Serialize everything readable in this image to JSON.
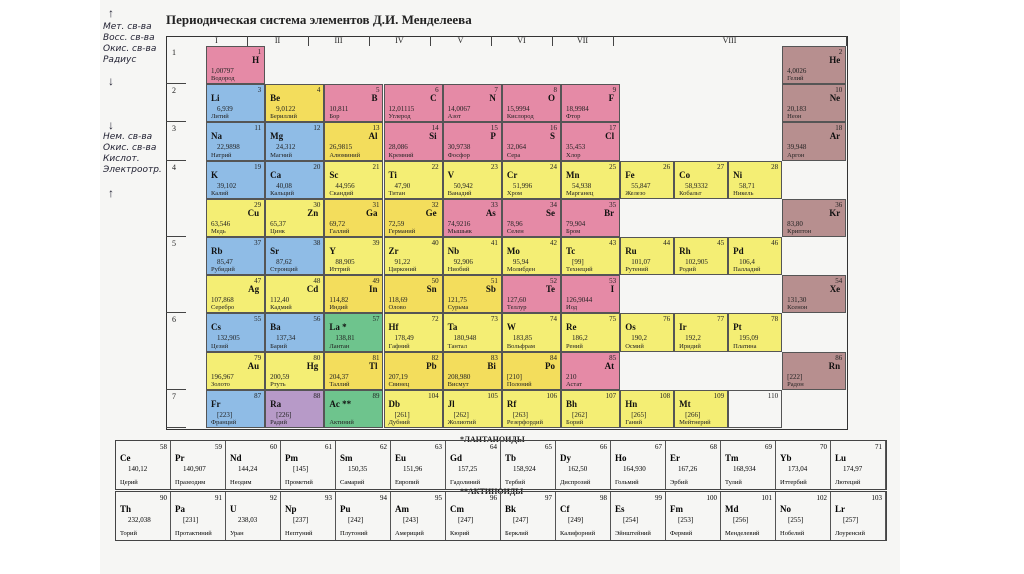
{
  "title": "Периодическая система элементов Д.И. Менделеева",
  "notes_top": [
    "Мет. св-ва",
    "Восс. св-ва",
    "Окис. св-ва",
    "Радиус"
  ],
  "notes_mid": [
    "Нем. св-ва",
    "Окис. св-ва",
    "Кислот.",
    "Электроотр."
  ],
  "groups": [
    "I",
    "II",
    "III",
    "IV",
    "V",
    "VI",
    "VII",
    "VIII"
  ],
  "periods": [
    "1",
    "2",
    "3",
    "4",
    "5",
    "6",
    "7"
  ],
  "colors": {
    "s": "#8fbce6",
    "p": "#f3dd5c",
    "d": "#f4ee74",
    "h": "#e58aa6",
    "noble": "#b78f8f",
    "lan": "#6ec48d",
    "purple": "#b79ac8"
  },
  "elements": [
    {
      "sym": "H",
      "num": "1",
      "mass": "1,00797",
      "name": "Водород",
      "side": "right",
      "col": 0,
      "row": 0,
      "c": "h"
    },
    {
      "sym": "He",
      "num": "2",
      "mass": "4,0026",
      "name": "Гелий",
      "side": "right",
      "col": 8,
      "row": 0,
      "c": "noble"
    },
    {
      "sym": "Li",
      "num": "3",
      "mass": "6,939",
      "name": "Литий",
      "side": "left",
      "col": 0,
      "row": 1,
      "c": "s"
    },
    {
      "sym": "Be",
      "num": "4",
      "mass": "9,0122",
      "name": "Бериллий",
      "side": "left",
      "col": 1,
      "row": 1,
      "c": "p"
    },
    {
      "sym": "B",
      "num": "5",
      "mass": "10,811",
      "name": "Бор",
      "side": "right",
      "col": 2,
      "row": 1,
      "c": "h"
    },
    {
      "sym": "C",
      "num": "6",
      "mass": "12,01115",
      "name": "Углерод",
      "side": "right",
      "col": 3,
      "row": 1,
      "c": "h"
    },
    {
      "sym": "N",
      "num": "7",
      "mass": "14,0067",
      "name": "Азот",
      "side": "right",
      "col": 4,
      "row": 1,
      "c": "h"
    },
    {
      "sym": "O",
      "num": "8",
      "mass": "15,9994",
      "name": "Кислород",
      "side": "right",
      "col": 5,
      "row": 1,
      "c": "h"
    },
    {
      "sym": "F",
      "num": "9",
      "mass": "18,9984",
      "name": "Фтор",
      "side": "right",
      "col": 6,
      "row": 1,
      "c": "h"
    },
    {
      "sym": "Ne",
      "num": "10",
      "mass": "20,183",
      "name": "Неон",
      "side": "right",
      "col": 8,
      "row": 1,
      "c": "noble"
    },
    {
      "sym": "Na",
      "num": "11",
      "mass": "22,9898",
      "name": "Натрий",
      "side": "left",
      "col": 0,
      "row": 2,
      "c": "s"
    },
    {
      "sym": "Mg",
      "num": "12",
      "mass": "24,312",
      "name": "Магний",
      "side": "left",
      "col": 1,
      "row": 2,
      "c": "s"
    },
    {
      "sym": "Al",
      "num": "13",
      "mass": "26,9815",
      "name": "Алюминий",
      "side": "right",
      "col": 2,
      "row": 2,
      "c": "p"
    },
    {
      "sym": "Si",
      "num": "14",
      "mass": "28,086",
      "name": "Кремний",
      "side": "right",
      "col": 3,
      "row": 2,
      "c": "h"
    },
    {
      "sym": "P",
      "num": "15",
      "mass": "30,9738",
      "name": "Фосфор",
      "side": "right",
      "col": 4,
      "row": 2,
      "c": "h"
    },
    {
      "sym": "S",
      "num": "16",
      "mass": "32,064",
      "name": "Сера",
      "side": "right",
      "col": 5,
      "row": 2,
      "c": "h"
    },
    {
      "sym": "Cl",
      "num": "17",
      "mass": "35,453",
      "name": "Хлор",
      "side": "right",
      "col": 6,
      "row": 2,
      "c": "h"
    },
    {
      "sym": "Ar",
      "num": "18",
      "mass": "39,948",
      "name": "Аргон",
      "side": "right",
      "col": 8,
      "row": 2,
      "c": "noble"
    },
    {
      "sym": "K",
      "num": "19",
      "mass": "39,102",
      "name": "Калий",
      "side": "left",
      "col": 0,
      "row": 3,
      "c": "s"
    },
    {
      "sym": "Ca",
      "num": "20",
      "mass": "40,08",
      "name": "Кальций",
      "side": "left",
      "col": 1,
      "row": 3,
      "c": "s"
    },
    {
      "sym": "Sc",
      "num": "21",
      "mass": "44,956",
      "name": "Скандий",
      "side": "left",
      "col": 2,
      "row": 3,
      "c": "d"
    },
    {
      "sym": "Ti",
      "num": "22",
      "mass": "47,90",
      "name": "Титан",
      "side": "left",
      "col": 3,
      "row": 3,
      "c": "d"
    },
    {
      "sym": "V",
      "num": "23",
      "mass": "50,942",
      "name": "Ванадий",
      "side": "left",
      "col": 4,
      "row": 3,
      "c": "d"
    },
    {
      "sym": "Cr",
      "num": "24",
      "mass": "51,996",
      "name": "Хром",
      "side": "left",
      "col": 5,
      "row": 3,
      "c": "d"
    },
    {
      "sym": "Mn",
      "num": "25",
      "mass": "54,938",
      "name": "Марганец",
      "side": "left",
      "col": 6,
      "row": 3,
      "c": "d"
    },
    {
      "sym": "Fe",
      "num": "26",
      "mass": "55,847",
      "name": "Железо",
      "side": "left",
      "col": 7,
      "row": 3,
      "c": "d",
      "sub": 0
    },
    {
      "sym": "Co",
      "num": "27",
      "mass": "58,9332",
      "name": "Кобальт",
      "side": "left",
      "col": 7,
      "row": 3,
      "c": "d",
      "sub": 1
    },
    {
      "sym": "Ni",
      "num": "28",
      "mass": "58,71",
      "name": "Никель",
      "side": "left",
      "col": 7,
      "row": 3,
      "c": "d",
      "sub": 2
    },
    {
      "sym": "Cu",
      "num": "29",
      "mass": "63,546",
      "name": "Медь",
      "side": "right",
      "col": 0,
      "row": 4,
      "c": "d"
    },
    {
      "sym": "Zn",
      "num": "30",
      "mass": "65,37",
      "name": "Цинк",
      "side": "right",
      "col": 1,
      "row": 4,
      "c": "d"
    },
    {
      "sym": "Ga",
      "num": "31",
      "mass": "69,72",
      "name": "Галлий",
      "side": "right",
      "col": 2,
      "row": 4,
      "c": "p"
    },
    {
      "sym": "Ge",
      "num": "32",
      "mass": "72,59",
      "name": "Германий",
      "side": "right",
      "col": 3,
      "row": 4,
      "c": "p"
    },
    {
      "sym": "As",
      "num": "33",
      "mass": "74,9216",
      "name": "Мышьяк",
      "side": "right",
      "col": 4,
      "row": 4,
      "c": "h"
    },
    {
      "sym": "Se",
      "num": "34",
      "mass": "78,96",
      "name": "Селен",
      "side": "right",
      "col": 5,
      "row": 4,
      "c": "h"
    },
    {
      "sym": "Br",
      "num": "35",
      "mass": "79,904",
      "name": "Бром",
      "side": "right",
      "col": 6,
      "row": 4,
      "c": "h"
    },
    {
      "sym": "Kr",
      "num": "36",
      "mass": "83,80",
      "name": "Криптон",
      "side": "right",
      "col": 8,
      "row": 4,
      "c": "noble"
    },
    {
      "sym": "Rb",
      "num": "37",
      "mass": "85,47",
      "name": "Рубидий",
      "side": "left",
      "col": 0,
      "row": 5,
      "c": "s"
    },
    {
      "sym": "Sr",
      "num": "38",
      "mass": "87,62",
      "name": "Стронций",
      "side": "left",
      "col": 1,
      "row": 5,
      "c": "s"
    },
    {
      "sym": "Y",
      "num": "39",
      "mass": "88,905",
      "name": "Иттрий",
      "side": "left",
      "col": 2,
      "row": 5,
      "c": "d"
    },
    {
      "sym": "Zr",
      "num": "40",
      "mass": "91,22",
      "name": "Цирконий",
      "side": "left",
      "col": 3,
      "row": 5,
      "c": "d"
    },
    {
      "sym": "Nb",
      "num": "41",
      "mass": "92,906",
      "name": "Ниобий",
      "side": "left",
      "col": 4,
      "row": 5,
      "c": "d"
    },
    {
      "sym": "Mo",
      "num": "42",
      "mass": "95,94",
      "name": "Молибден",
      "side": "left",
      "col": 5,
      "row": 5,
      "c": "d"
    },
    {
      "sym": "Tc",
      "num": "43",
      "mass": "[99]",
      "name": "Технеций",
      "side": "left",
      "col": 6,
      "row": 5,
      "c": "d"
    },
    {
      "sym": "Ru",
      "num": "44",
      "mass": "101,07",
      "name": "Рутений",
      "side": "left",
      "col": 7,
      "row": 5,
      "c": "d",
      "sub": 0
    },
    {
      "sym": "Rh",
      "num": "45",
      "mass": "102,905",
      "name": "Родий",
      "side": "left",
      "col": 7,
      "row": 5,
      "c": "d",
      "sub": 1
    },
    {
      "sym": "Pd",
      "num": "46",
      "mass": "106,4",
      "name": "Палладий",
      "side": "left",
      "col": 7,
      "row": 5,
      "c": "d",
      "sub": 2
    },
    {
      "sym": "Ag",
      "num": "47",
      "mass": "107,868",
      "name": "Серебро",
      "side": "right",
      "col": 0,
      "row": 6,
      "c": "d"
    },
    {
      "sym": "Cd",
      "num": "48",
      "mass": "112,40",
      "name": "Кадмий",
      "side": "right",
      "col": 1,
      "row": 6,
      "c": "d"
    },
    {
      "sym": "In",
      "num": "49",
      "mass": "114,82",
      "name": "Индий",
      "side": "right",
      "col": 2,
      "row": 6,
      "c": "p"
    },
    {
      "sym": "Sn",
      "num": "50",
      "mass": "118,69",
      "name": "Олово",
      "side": "right",
      "col": 3,
      "row": 6,
      "c": "p"
    },
    {
      "sym": "Sb",
      "num": "51",
      "mass": "121,75",
      "name": "Сурьма",
      "side": "right",
      "col": 4,
      "row": 6,
      "c": "p"
    },
    {
      "sym": "Te",
      "num": "52",
      "mass": "127,60",
      "name": "Теллур",
      "side": "right",
      "col": 5,
      "row": 6,
      "c": "h"
    },
    {
      "sym": "I",
      "num": "53",
      "mass": "126,9044",
      "name": "Иод",
      "side": "right",
      "col": 6,
      "row": 6,
      "c": "h"
    },
    {
      "sym": "Xe",
      "num": "54",
      "mass": "131,30",
      "name": "Ксенон",
      "side": "right",
      "col": 8,
      "row": 6,
      "c": "noble"
    },
    {
      "sym": "Cs",
      "num": "55",
      "mass": "132,905",
      "name": "Цезий",
      "side": "left",
      "col": 0,
      "row": 7,
      "c": "s"
    },
    {
      "sym": "Ba",
      "num": "56",
      "mass": "137,34",
      "name": "Барий",
      "side": "left",
      "col": 1,
      "row": 7,
      "c": "s"
    },
    {
      "sym": "La *",
      "num": "57",
      "mass": "138,81",
      "name": "Лантан",
      "side": "left",
      "col": 2,
      "row": 7,
      "c": "lan"
    },
    {
      "sym": "Hf",
      "num": "72",
      "mass": "178,49",
      "name": "Гафний",
      "side": "left",
      "col": 3,
      "row": 7,
      "c": "d"
    },
    {
      "sym": "Ta",
      "num": "73",
      "mass": "180,948",
      "name": "Тантал",
      "side": "left",
      "col": 4,
      "row": 7,
      "c": "d"
    },
    {
      "sym": "W",
      "num": "74",
      "mass": "183,85",
      "name": "Вольфрам",
      "side": "left",
      "col": 5,
      "row": 7,
      "c": "d"
    },
    {
      "sym": "Re",
      "num": "75",
      "mass": "186,2",
      "name": "Рений",
      "side": "left",
      "col": 6,
      "row": 7,
      "c": "d"
    },
    {
      "sym": "Os",
      "num": "76",
      "mass": "190,2",
      "name": "Осмий",
      "side": "left",
      "col": 7,
      "row": 7,
      "c": "d",
      "sub": 0
    },
    {
      "sym": "Ir",
      "num": "77",
      "mass": "192,2",
      "name": "Иридий",
      "side": "left",
      "col": 7,
      "row": 7,
      "c": "d",
      "sub": 1
    },
    {
      "sym": "Pt",
      "num": "78",
      "mass": "195,09",
      "name": "Платина",
      "side": "left",
      "col": 7,
      "row": 7,
      "c": "d",
      "sub": 2
    },
    {
      "sym": "Au",
      "num": "79",
      "mass": "196,967",
      "name": "Золото",
      "side": "right",
      "col": 0,
      "row": 8,
      "c": "d"
    },
    {
      "sym": "Hg",
      "num": "80",
      "mass": "200,59",
      "name": "Ртуть",
      "side": "right",
      "col": 1,
      "row": 8,
      "c": "d"
    },
    {
      "sym": "Tl",
      "num": "81",
      "mass": "204,37",
      "name": "Таллий",
      "side": "right",
      "col": 2,
      "row": 8,
      "c": "p"
    },
    {
      "sym": "Pb",
      "num": "82",
      "mass": "207,19",
      "name": "Свинец",
      "side": "right",
      "col": 3,
      "row": 8,
      "c": "p"
    },
    {
      "sym": "Bi",
      "num": "83",
      "mass": "208,980",
      "name": "Висмут",
      "side": "right",
      "col": 4,
      "row": 8,
      "c": "p"
    },
    {
      "sym": "Po",
      "num": "84",
      "mass": "[210]",
      "name": "Полоний",
      "side": "right",
      "col": 5,
      "row": 8,
      "c": "p"
    },
    {
      "sym": "At",
      "num": "85",
      "mass": "210",
      "name": "Астат",
      "side": "right",
      "col": 6,
      "row": 8,
      "c": "h"
    },
    {
      "sym": "Rn",
      "num": "86",
      "mass": "[222]",
      "name": "Радон",
      "side": "right",
      "col": 8,
      "row": 8,
      "c": "noble"
    },
    {
      "sym": "Fr",
      "num": "87",
      "mass": "[223]",
      "name": "Франций",
      "side": "left",
      "col": 0,
      "row": 9,
      "c": "s"
    },
    {
      "sym": "Ra",
      "num": "88",
      "mass": "[226]",
      "name": "Радий",
      "side": "left",
      "col": 1,
      "row": 9,
      "c": "purple"
    },
    {
      "sym": "Ac **",
      "num": "89",
      "mass": "",
      "name": "Актиний",
      "side": "left",
      "col": 2,
      "row": 9,
      "c": "lan"
    },
    {
      "sym": "Db",
      "num": "104",
      "mass": "[261]",
      "name": "Дубний",
      "side": "left",
      "col": 3,
      "row": 9,
      "c": "d"
    },
    {
      "sym": "Jl",
      "num": "105",
      "mass": "[262]",
      "name": "Жолиотий",
      "side": "left",
      "col": 4,
      "row": 9,
      "c": "d"
    },
    {
      "sym": "Rf",
      "num": "106",
      "mass": "[263]",
      "name": "Резерфордий",
      "side": "left",
      "col": 5,
      "row": 9,
      "c": "d"
    },
    {
      "sym": "Bh",
      "num": "107",
      "mass": "[262]",
      "name": "Борий",
      "side": "left",
      "col": 6,
      "row": 9,
      "c": "d"
    },
    {
      "sym": "Hn",
      "num": "108",
      "mass": "[265]",
      "name": "Ганий",
      "side": "left",
      "col": 7,
      "row": 9,
      "c": "d",
      "sub": 0
    },
    {
      "sym": "Mt",
      "num": "109",
      "mass": "[266]",
      "name": "Мейтнерий",
      "side": "left",
      "col": 7,
      "row": 9,
      "c": "d",
      "sub": 1
    },
    {
      "sym": "",
      "num": "110",
      "mass": "",
      "name": "",
      "side": "left",
      "col": 7,
      "row": 9,
      "c": "none",
      "sub": 2
    }
  ],
  "lanthanides_label": "*ЛАНТАНОИДЫ",
  "lanthanides": [
    {
      "sym": "Ce",
      "num": "58",
      "mass": "140,12",
      "name": "Церий"
    },
    {
      "sym": "Pr",
      "num": "59",
      "mass": "140,907",
      "name": "Празеодим"
    },
    {
      "sym": "Nd",
      "num": "60",
      "mass": "144,24",
      "name": "Неодим"
    },
    {
      "sym": "Pm",
      "num": "61",
      "mass": "[145]",
      "name": "Прометий"
    },
    {
      "sym": "Sm",
      "num": "62",
      "mass": "150,35",
      "name": "Самарий"
    },
    {
      "sym": "Eu",
      "num": "63",
      "mass": "151,96",
      "name": "Европий"
    },
    {
      "sym": "Gd",
      "num": "64",
      "mass": "157,25",
      "name": "Гадолиний"
    },
    {
      "sym": "Tb",
      "num": "65",
      "mass": "158,924",
      "name": "Тербий"
    },
    {
      "sym": "Dy",
      "num": "66",
      "mass": "162,50",
      "name": "Диспрозий"
    },
    {
      "sym": "Ho",
      "num": "67",
      "mass": "164,930",
      "name": "Гольмий"
    },
    {
      "sym": "Er",
      "num": "68",
      "mass": "167,26",
      "name": "Эрбий"
    },
    {
      "sym": "Tm",
      "num": "69",
      "mass": "168,934",
      "name": "Тулий"
    },
    {
      "sym": "Yb",
      "num": "70",
      "mass": "173,04",
      "name": "Иттербий"
    },
    {
      "sym": "Lu",
      "num": "71",
      "mass": "174,97",
      "name": "Лютеций"
    }
  ],
  "actinides_label": "**АКТИНОИДЫ",
  "actinides": [
    {
      "sym": "Th",
      "num": "90",
      "mass": "232,038",
      "name": "Торий"
    },
    {
      "sym": "Pa",
      "num": "91",
      "mass": "[231]",
      "name": "Протактиний"
    },
    {
      "sym": "U",
      "num": "92",
      "mass": "238,03",
      "name": "Уран"
    },
    {
      "sym": "Np",
      "num": "93",
      "mass": "[237]",
      "name": "Нептуний"
    },
    {
      "sym": "Pu",
      "num": "94",
      "mass": "[242]",
      "name": "Плутоний"
    },
    {
      "sym": "Am",
      "num": "95",
      "mass": "[243]",
      "name": "Америций"
    },
    {
      "sym": "Cm",
      "num": "96",
      "mass": "[247]",
      "name": "Кюрий"
    },
    {
      "sym": "Bk",
      "num": "97",
      "mass": "[247]",
      "name": "Берклий"
    },
    {
      "sym": "Cf",
      "num": "98",
      "mass": "[249]",
      "name": "Калифорний"
    },
    {
      "sym": "Es",
      "num": "99",
      "mass": "[254]",
      "name": "Эйнштейний"
    },
    {
      "sym": "Fm",
      "num": "100",
      "mass": "[253]",
      "name": "Фермий"
    },
    {
      "sym": "Md",
      "num": "101",
      "mass": "[256]",
      "name": "Менделевий"
    },
    {
      "sym": "No",
      "num": "102",
      "mass": "[255]",
      "name": "Нобелий"
    },
    {
      "sym": "Lr",
      "num": "103",
      "mass": "[257]",
      "name": "Лоуренсий"
    }
  ]
}
